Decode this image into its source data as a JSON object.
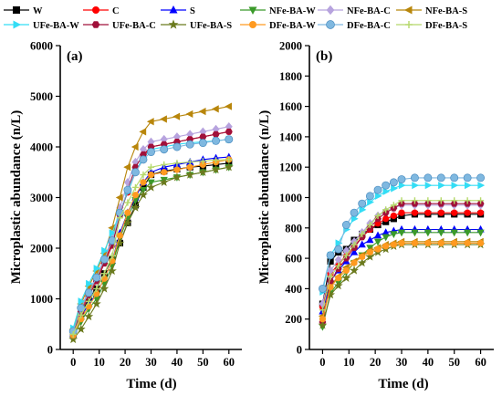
{
  "legend": [
    {
      "name": "W",
      "color": "#000000",
      "marker": "square"
    },
    {
      "name": "C",
      "color": "#ff0000",
      "marker": "circle"
    },
    {
      "name": "S",
      "color": "#0000ff",
      "marker": "triangle-up"
    },
    {
      "name": "NFe-BA-W",
      "color": "#3a9a2a",
      "marker": "triangle-down"
    },
    {
      "name": "NFe-BA-C",
      "color": "#b7a3de",
      "marker": "diamond"
    },
    {
      "name": "NFe-BA-S",
      "color": "#b8860b",
      "marker": "triangle-left"
    },
    {
      "name": "UFe-BA-W",
      "color": "#33ddf5",
      "marker": "triangle-right"
    },
    {
      "name": "UFe-BA-C",
      "color": "#a0103a",
      "marker": "hexagon"
    },
    {
      "name": "UFe-BA-S",
      "color": "#6b7a1e",
      "marker": "star"
    },
    {
      "name": "DFe-BA-W",
      "color": "#ff9a20",
      "marker": "circle"
    },
    {
      "name": "DFe-BA-C",
      "color": "#7fb8e0",
      "marker": "sphere"
    },
    {
      "name": "DFe-BA-S",
      "color": "#b5d86a",
      "marker": "plus"
    }
  ],
  "chart_data": [
    {
      "type": "line",
      "panel_label": "(a)",
      "xlabel": "Time (d)",
      "ylabel": "Microplastic abundance (n/L)",
      "xlim": [
        -5,
        65
      ],
      "ylim": [
        0,
        6000
      ],
      "xticks": [
        "0",
        "10",
        "20",
        "30",
        "40",
        "50",
        "60"
      ],
      "yticks": [
        "0",
        "1000",
        "2000",
        "3000",
        "4000",
        "5000",
        "6000"
      ],
      "x": [
        0,
        3,
        6,
        9,
        12,
        15,
        18,
        21,
        24,
        27,
        30,
        35,
        40,
        45,
        50,
        55,
        60
      ],
      "series": [
        {
          "name": "W",
          "values": [
            300,
            700,
            1000,
            1200,
            1500,
            1800,
            2100,
            2500,
            2850,
            3200,
            3450,
            3520,
            3560,
            3600,
            3620,
            3650,
            3680
          ]
        },
        {
          "name": "C",
          "values": [
            350,
            800,
            1100,
            1400,
            1750,
            2100,
            2700,
            3100,
            3500,
            3800,
            4000,
            4050,
            4100,
            4150,
            4200,
            4250,
            4300
          ]
        },
        {
          "name": "S",
          "values": [
            320,
            650,
            900,
            1100,
            1400,
            1750,
            2300,
            2700,
            3000,
            3300,
            3500,
            3600,
            3650,
            3700,
            3750,
            3780,
            3800
          ]
        },
        {
          "name": "NFe-BA-W",
          "values": [
            250,
            550,
            800,
            1000,
            1300,
            1650,
            2200,
            2600,
            2950,
            3150,
            3300,
            3350,
            3400,
            3450,
            3500,
            3550,
            3600
          ]
        },
        {
          "name": "NFe-BA-C",
          "values": [
            380,
            850,
            1150,
            1450,
            1800,
            2200,
            2800,
            3300,
            3700,
            3950,
            4100,
            4150,
            4200,
            4250,
            4300,
            4350,
            4400
          ]
        },
        {
          "name": "NFe-BA-S",
          "values": [
            400,
            900,
            1250,
            1550,
            1900,
            2400,
            3000,
            3600,
            4000,
            4300,
            4500,
            4550,
            4600,
            4650,
            4700,
            4750,
            4800
          ]
        },
        {
          "name": "UFe-BA-W",
          "values": [
            420,
            950,
            1300,
            1600,
            1950,
            2300,
            2700,
            3100,
            3500,
            3800,
            3950,
            4000,
            4050,
            4080,
            4100,
            4120,
            4150
          ]
        },
        {
          "name": "UFe-BA-C",
          "values": [
            330,
            750,
            1050,
            1350,
            1700,
            2050,
            2650,
            3150,
            3600,
            3850,
            4000,
            4050,
            4100,
            4150,
            4200,
            4250,
            4300
          ]
        },
        {
          "name": "UFe-BA-S",
          "values": [
            200,
            400,
            650,
            900,
            1200,
            1550,
            2100,
            2500,
            2800,
            3050,
            3200,
            3300,
            3400,
            3450,
            3500,
            3550,
            3600
          ]
        },
        {
          "name": "DFe-BA-W",
          "values": [
            280,
            600,
            850,
            1100,
            1400,
            1750,
            2250,
            2700,
            3050,
            3300,
            3450,
            3500,
            3550,
            3600,
            3650,
            3700,
            3750
          ]
        },
        {
          "name": "DFe-BA-C",
          "values": [
            360,
            820,
            1120,
            1420,
            1780,
            2150,
            2700,
            3150,
            3500,
            3750,
            3900,
            3950,
            4000,
            4050,
            4080,
            4120,
            4150
          ]
        },
        {
          "name": "DFe-BA-S",
          "values": [
            300,
            680,
            950,
            1200,
            1500,
            1850,
            2600,
            2900,
            3200,
            3450,
            3600,
            3650,
            3680,
            3700,
            3720,
            3740,
            3750
          ]
        }
      ]
    },
    {
      "type": "line",
      "panel_label": "(b)",
      "xlabel": "Time (d)",
      "ylabel": "Microplastic abundance (n/L)",
      "xlim": [
        -5,
        65
      ],
      "ylim": [
        0,
        2000
      ],
      "xticks": [
        "0",
        "10",
        "20",
        "30",
        "40",
        "50",
        "60"
      ],
      "yticks": [
        "0",
        "200",
        "400",
        "600",
        "800",
        "1000",
        "1200",
        "1400",
        "1600",
        "1800",
        "2000"
      ],
      "x": [
        0,
        3,
        6,
        9,
        12,
        15,
        18,
        21,
        24,
        27,
        30,
        35,
        40,
        45,
        50,
        55,
        60
      ],
      "series": [
        {
          "name": "W",
          "values": [
            300,
            580,
            640,
            660,
            720,
            760,
            790,
            820,
            840,
            860,
            880,
            890,
            890,
            890,
            890,
            890,
            890
          ]
        },
        {
          "name": "C",
          "values": [
            280,
            500,
            560,
            620,
            680,
            740,
            790,
            830,
            860,
            880,
            900,
            900,
            900,
            900,
            900,
            900,
            900
          ]
        },
        {
          "name": "S",
          "values": [
            250,
            450,
            520,
            580,
            640,
            690,
            720,
            750,
            770,
            780,
            790,
            790,
            790,
            790,
            790,
            790,
            790
          ]
        },
        {
          "name": "NFe-BA-W",
          "values": [
            150,
            370,
            440,
            510,
            570,
            620,
            670,
            710,
            740,
            760,
            770,
            770,
            770,
            770,
            770,
            770,
            770
          ]
        },
        {
          "name": "NFe-BA-C",
          "values": [
            300,
            520,
            590,
            650,
            710,
            770,
            830,
            880,
            910,
            930,
            950,
            950,
            950,
            950,
            950,
            950,
            950
          ]
        },
        {
          "name": "NFe-BA-S",
          "values": [
            220,
            420,
            480,
            540,
            580,
            620,
            650,
            670,
            690,
            700,
            710,
            710,
            710,
            710,
            710,
            710,
            710
          ]
        },
        {
          "name": "UFe-BA-W",
          "values": [
            380,
            620,
            700,
            790,
            860,
            920,
            970,
            1010,
            1040,
            1060,
            1080,
            1080,
            1080,
            1080,
            1080,
            1080,
            1080
          ]
        },
        {
          "name": "UFe-BA-C",
          "values": [
            180,
            450,
            530,
            600,
            670,
            740,
            800,
            860,
            900,
            930,
            960,
            960,
            960,
            960,
            960,
            960,
            960
          ]
        },
        {
          "name": "UFe-BA-S",
          "values": [
            160,
            360,
            420,
            470,
            520,
            570,
            610,
            640,
            660,
            680,
            690,
            690,
            690,
            690,
            690,
            690,
            690
          ]
        },
        {
          "name": "DFe-BA-W",
          "values": [
            200,
            410,
            470,
            520,
            570,
            610,
            640,
            660,
            680,
            690,
            700,
            700,
            700,
            700,
            700,
            700,
            700
          ]
        },
        {
          "name": "DFe-BA-C",
          "values": [
            400,
            620,
            660,
            820,
            900,
            960,
            1010,
            1050,
            1080,
            1100,
            1120,
            1130,
            1130,
            1130,
            1130,
            1130,
            1130
          ]
        },
        {
          "name": "DFe-BA-S",
          "values": [
            260,
            480,
            550,
            620,
            690,
            760,
            820,
            880,
            920,
            950,
            980,
            980,
            980,
            980,
            980,
            980,
            980
          ]
        }
      ]
    }
  ]
}
